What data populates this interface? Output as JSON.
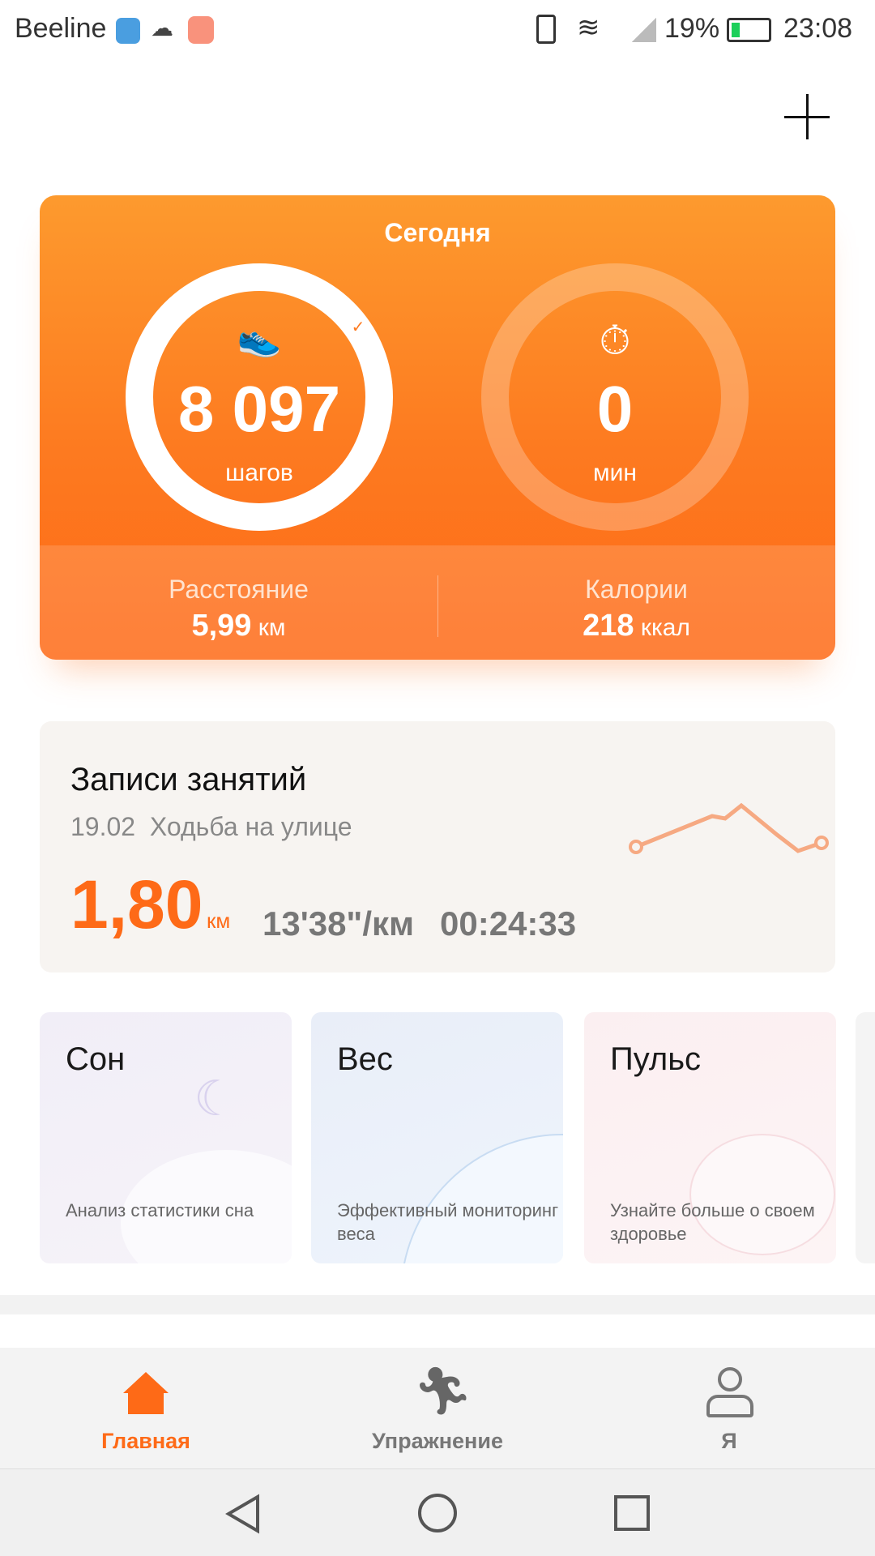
{
  "status_bar": {
    "carrier": "Beeline",
    "battery": "19%",
    "time": "23:08"
  },
  "header": {
    "add_icon": "plus-icon"
  },
  "today": {
    "title": "Сегодня",
    "steps": {
      "value": "8 097",
      "unit": "шагов",
      "goal_reached": true
    },
    "activity": {
      "value": "0",
      "unit": "мин"
    },
    "distance": {
      "label": "Расстояние",
      "value": "5,99",
      "unit": "км"
    },
    "calories": {
      "label": "Калории",
      "value": "218",
      "unit": "ккал"
    },
    "accent": "#fd7a20"
  },
  "records": {
    "title": "Записи занятий",
    "date": "19.02",
    "activity": "Ходьба на улице",
    "distance": "1,80",
    "distance_unit": "км",
    "pace": "13'38\"/км",
    "duration": "00:24:33",
    "accent": "#fe6a17"
  },
  "tiles": [
    {
      "title": "Сон",
      "subtitle": "Анализ статистики сна"
    },
    {
      "title": "Вес",
      "subtitle": "Эффективный мониторинг веса"
    },
    {
      "title": "Пульс",
      "subtitle": "Узнайте больше о своем здоровье"
    }
  ],
  "bottom_nav": [
    {
      "label": "Главная",
      "icon": "home-icon",
      "active": true
    },
    {
      "label": "Упражнение",
      "icon": "running-icon",
      "active": false
    },
    {
      "label": "Я",
      "icon": "person-icon",
      "active": false
    }
  ]
}
